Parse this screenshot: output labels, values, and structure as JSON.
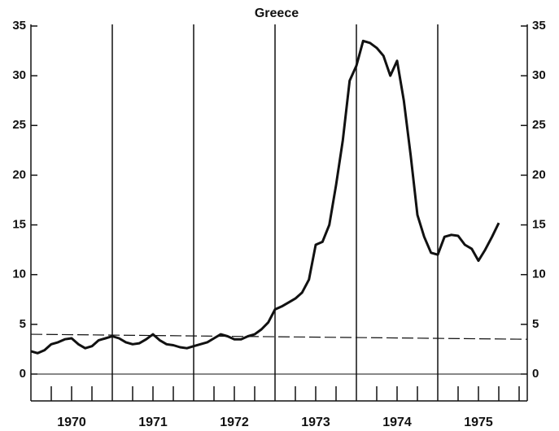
{
  "chart_data": {
    "type": "line",
    "title": "Greece",
    "x": [
      1970.0,
      1970.083,
      1970.167,
      1970.25,
      1970.333,
      1970.417,
      1970.5,
      1970.583,
      1970.667,
      1970.75,
      1970.833,
      1970.917,
      1971.0,
      1971.083,
      1971.167,
      1971.25,
      1971.333,
      1971.417,
      1971.5,
      1971.583,
      1971.667,
      1971.75,
      1971.833,
      1971.917,
      1972.0,
      1972.083,
      1972.167,
      1972.25,
      1972.333,
      1972.417,
      1972.5,
      1972.583,
      1972.667,
      1972.75,
      1972.833,
      1972.917,
      1973.0,
      1973.083,
      1973.167,
      1973.25,
      1973.333,
      1973.417,
      1973.5,
      1973.583,
      1973.667,
      1973.75,
      1973.833,
      1973.917,
      1974.0,
      1974.083,
      1974.167,
      1974.25,
      1974.333,
      1974.417,
      1974.5,
      1974.583,
      1974.667,
      1974.75,
      1974.833,
      1974.917,
      1975.0,
      1975.083,
      1975.167,
      1975.25,
      1975.333,
      1975.417,
      1975.5,
      1975.583,
      1975.667,
      1975.75
    ],
    "series": [
      {
        "color": "#111111",
        "values": [
          2.3,
          2.1,
          2.4,
          3.0,
          3.2,
          3.5,
          3.6,
          3.0,
          2.6,
          2.8,
          3.4,
          3.6,
          3.8,
          3.6,
          3.2,
          3.0,
          3.1,
          3.5,
          4.0,
          3.4,
          3.0,
          2.9,
          2.7,
          2.6,
          2.8,
          3.0,
          3.2,
          3.6,
          4.0,
          3.8,
          3.5,
          3.5,
          3.8,
          4.0,
          4.5,
          5.2,
          6.5,
          6.8,
          7.2,
          7.6,
          8.2,
          9.5,
          13.0,
          13.3,
          15.0,
          19.0,
          23.5,
          29.5,
          31.0,
          33.5,
          33.3,
          32.8,
          32.0,
          30.0,
          31.5,
          27.5,
          22.0,
          16.0,
          13.8,
          12.2,
          12.0,
          13.8,
          14.0,
          13.9,
          13.0,
          12.6,
          11.4,
          12.5,
          13.8,
          15.2
        ]
      }
    ],
    "reference_line": [
      4.0,
      3.5
    ],
    "xlim": [
      1970,
      1976.1
    ],
    "xticks": [
      {
        "value": 1970.5,
        "label": "1970"
      },
      {
        "value": 1971.5,
        "label": "1971"
      },
      {
        "value": 1972.5,
        "label": "1972"
      },
      {
        "value": 1973.5,
        "label": "1973"
      },
      {
        "value": 1974.5,
        "label": "1974"
      },
      {
        "value": 1975.5,
        "label": "1975"
      }
    ],
    "year_lines": [
      1971,
      1972,
      1973,
      1974,
      1975
    ],
    "minor_xticks": [
      1970.25,
      1970.5,
      1970.75,
      1971.25,
      1971.5,
      1971.75,
      1972.25,
      1972.5,
      1972.75,
      1973.25,
      1973.5,
      1973.75,
      1974.25,
      1974.5,
      1974.75,
      1975.25,
      1975.5,
      1975.75,
      1976
    ],
    "ylim": [
      -2.7,
      35
    ],
    "yticks": [
      0,
      5,
      10,
      15,
      20,
      25,
      30,
      35
    ],
    "y2lim": [
      -2.7,
      35
    ],
    "y2ticks": [
      0,
      5,
      10,
      15,
      20,
      25,
      30,
      35
    ]
  }
}
